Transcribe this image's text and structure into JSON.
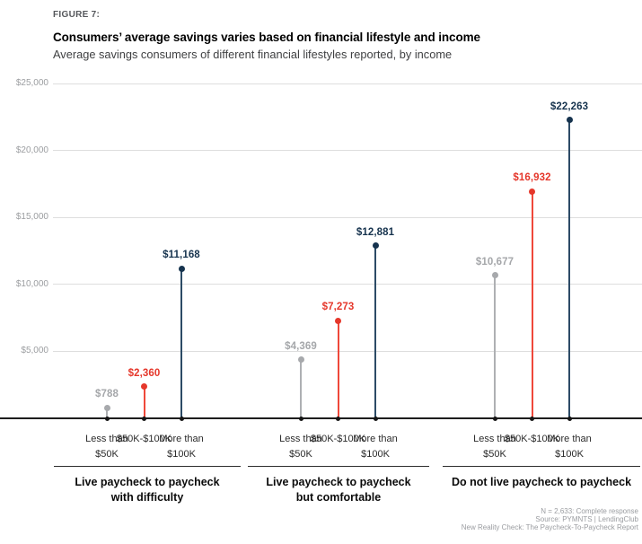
{
  "figure_label": "FIGURE 7:",
  "title": "Consumers’ average savings varies based on financial lifestyle and income",
  "subtitle": "Average savings consumers of different financial lifestyles reported, by income",
  "chart_data": {
    "type": "bar",
    "subtype": "lollipop",
    "ylim": [
      0,
      25000
    ],
    "grid": true,
    "yticks": [
      {
        "value": 5000,
        "label": "$5,000"
      },
      {
        "value": 10000,
        "label": "$10,000"
      },
      {
        "value": 15000,
        "label": "$15,000"
      },
      {
        "value": 20000,
        "label": "$20,000"
      },
      {
        "value": 25000,
        "label": "$25,000"
      }
    ],
    "income_levels": [
      {
        "line1": "Less than",
        "line2": "$50K",
        "color": "#a7a9ac",
        "stem_color": "#aeb0b3",
        "label_color": "#a5a7aa"
      },
      {
        "line1": "$50K-$100K",
        "line2": "",
        "color": "#e5372b",
        "stem_color": "#ef483a",
        "label_color": "#e5372b"
      },
      {
        "line1": "More than",
        "line2": "$100K",
        "color": "#16334e",
        "stem_color": "#2c4b66",
        "label_color": "#16334e"
      }
    ],
    "groups": [
      {
        "label_line1": "Live paycheck to paycheck",
        "label_line2": "with difficulty",
        "values": [
          788,
          2360,
          11168
        ],
        "value_labels": [
          "$788",
          "$2,360",
          "$11,168"
        ]
      },
      {
        "label_line1": "Live paycheck to paycheck",
        "label_line2": "but comfortable",
        "values": [
          4369,
          7273,
          12881
        ],
        "value_labels": [
          "$4,369",
          "$7,273",
          "$12,881"
        ]
      },
      {
        "label_line1": "Do not live paycheck to paycheck",
        "label_line2": "",
        "values": [
          10677,
          16932,
          22263
        ],
        "value_labels": [
          "$10,677",
          "$16,932",
          "$22,263"
        ]
      }
    ]
  },
  "footer": {
    "line1": "N = 2,633: Complete response",
    "line2": "Source: PYMNTS  |  LendingClub",
    "line3": "New Reality Check: The Paycheck-To-Paycheck Report"
  }
}
